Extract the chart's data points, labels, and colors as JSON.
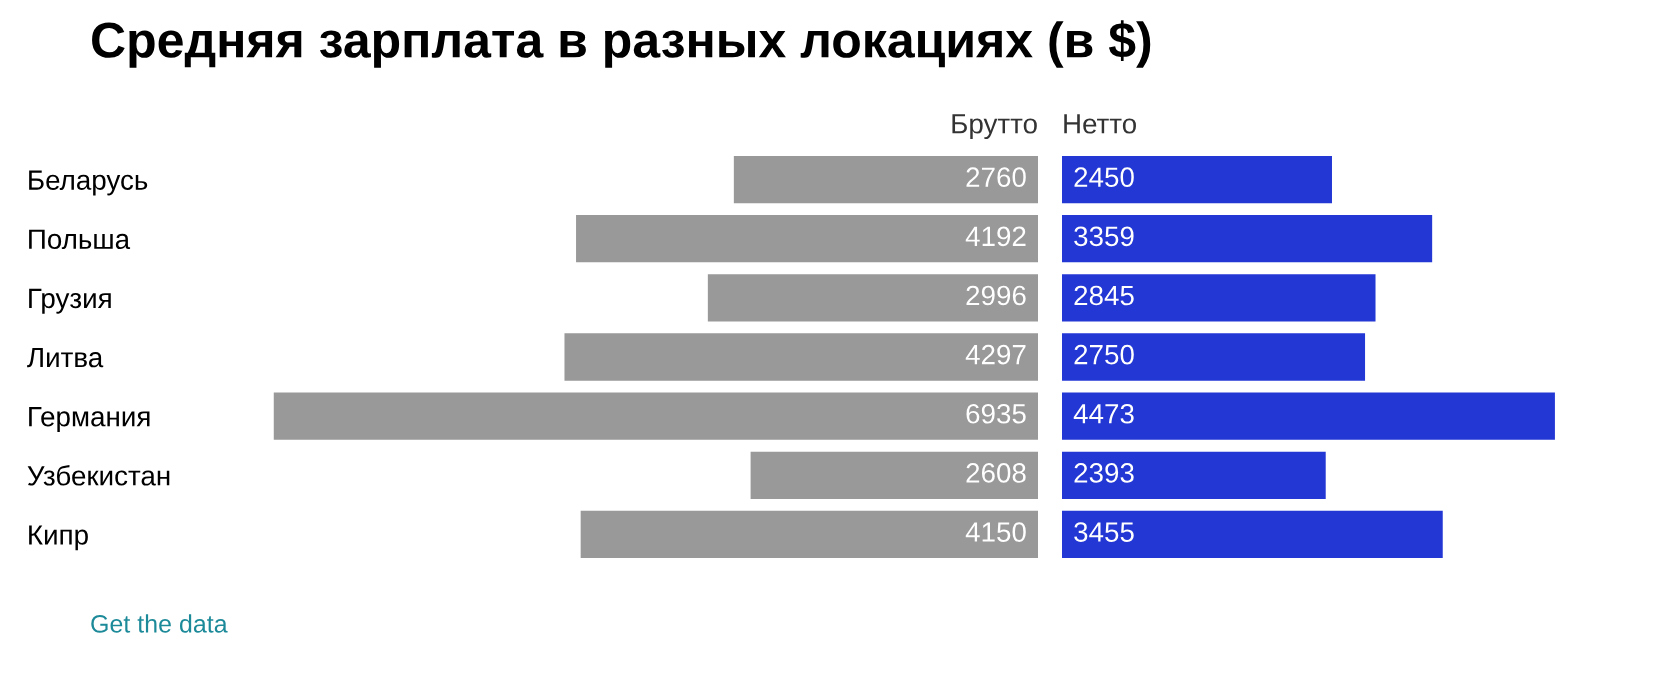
{
  "chart_data": [
    {
      "type": "bar",
      "orientation": "horizontal",
      "title": "Средняя зарплата в разных локациях (в $)",
      "subtitle": "Брутто",
      "categories": [
        "Беларусь",
        "Польша",
        "Грузия",
        "Литва",
        "Германия",
        "Узбекистан",
        "Кипр"
      ],
      "values": [
        2760,
        4192,
        2996,
        4297,
        6935,
        2608,
        4150
      ],
      "color": "#999999",
      "xlim": [
        7000,
        0
      ],
      "data_labels": true,
      "tick_labels": "y",
      "annotations": [
        "Get the data"
      ]
    },
    {
      "type": "bar",
      "orientation": "horizontal",
      "title": "Нетто",
      "values": [
        2450,
        3359,
        2845,
        2750,
        4473,
        2393,
        3455
      ],
      "color": "#2337d4",
      "data_labels": true,
      "tick_labels": false
    }
  ]
}
